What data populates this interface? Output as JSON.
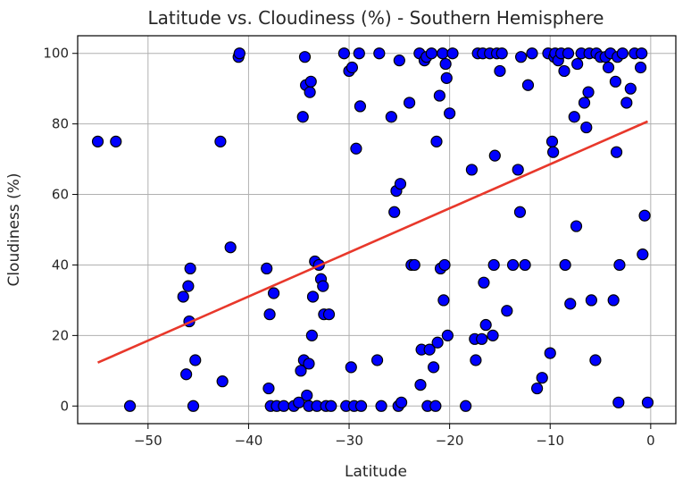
{
  "chart_data": {
    "type": "scatter",
    "title": "Latitude vs. Cloudiness (%) - Southern Hemisphere",
    "xlabel": "Latitude",
    "ylabel": "Cloudiness (%)",
    "xlim": [
      -57,
      2.5
    ],
    "ylim": [
      -5,
      105
    ],
    "xticks": [
      -50,
      -40,
      -30,
      -20,
      -10,
      0
    ],
    "yticks": [
      0,
      20,
      40,
      60,
      80,
      100
    ],
    "grid": true,
    "colors": {
      "marker_fill": "#0000ff",
      "marker_edge": "#000000",
      "regression_line": "#e8382b",
      "grid": "#b0b0b0"
    },
    "series": [
      {
        "values": [
          [
            -55,
            75
          ],
          [
            -53.2,
            75
          ],
          [
            -51.8,
            0
          ],
          [
            -46.5,
            31
          ],
          [
            -46.2,
            9
          ],
          [
            -46,
            34
          ],
          [
            -45.9,
            24
          ],
          [
            -45.8,
            39
          ],
          [
            -45.5,
            0
          ],
          [
            -45.3,
            13
          ],
          [
            -42.8,
            75
          ],
          [
            -42.6,
            7
          ],
          [
            -41.8,
            45
          ],
          [
            -41,
            99
          ],
          [
            -40.9,
            100
          ],
          [
            -38.2,
            39
          ],
          [
            -38,
            5
          ],
          [
            -37.9,
            26
          ],
          [
            -37.5,
            32
          ],
          [
            -37.8,
            0
          ],
          [
            -37.2,
            0
          ],
          [
            -36.5,
            0
          ],
          [
            -35.5,
            0
          ],
          [
            -35,
            1
          ],
          [
            -34.8,
            10
          ],
          [
            -34.6,
            82
          ],
          [
            -34.5,
            13
          ],
          [
            -34.4,
            99
          ],
          [
            -34.3,
            91
          ],
          [
            -34.2,
            3
          ],
          [
            -34,
            0
          ],
          [
            -34,
            12
          ],
          [
            -33.9,
            89
          ],
          [
            -33.8,
            92
          ],
          [
            -33.7,
            20
          ],
          [
            -33.6,
            31
          ],
          [
            -33.4,
            41
          ],
          [
            -33.2,
            0
          ],
          [
            -33,
            40
          ],
          [
            -32.8,
            36
          ],
          [
            -32.6,
            34
          ],
          [
            -32.5,
            26
          ],
          [
            -32.3,
            0
          ],
          [
            -32,
            26
          ],
          [
            -31.8,
            0
          ],
          [
            -30.5,
            100
          ],
          [
            -30.3,
            0
          ],
          [
            -30,
            95
          ],
          [
            -29.8,
            11
          ],
          [
            -29.7,
            96
          ],
          [
            -29.5,
            0
          ],
          [
            -29.3,
            73
          ],
          [
            -29,
            100
          ],
          [
            -28.9,
            85
          ],
          [
            -28.8,
            0
          ],
          [
            -27.2,
            13
          ],
          [
            -27,
            100
          ],
          [
            -26.8,
            0
          ],
          [
            -25.8,
            82
          ],
          [
            -25.5,
            55
          ],
          [
            -25.3,
            61
          ],
          [
            -25.1,
            0
          ],
          [
            -25,
            98
          ],
          [
            -24.9,
            63
          ],
          [
            -24.8,
            1
          ],
          [
            -24,
            86
          ],
          [
            -23.8,
            40
          ],
          [
            -23.5,
            40
          ],
          [
            -23,
            100
          ],
          [
            -22.9,
            6
          ],
          [
            -22.8,
            16
          ],
          [
            -22.5,
            98
          ],
          [
            -22.3,
            99
          ],
          [
            -22.2,
            0
          ],
          [
            -22,
            16
          ],
          [
            -21.8,
            100
          ],
          [
            -21.6,
            11
          ],
          [
            -21.4,
            0
          ],
          [
            -21.3,
            75
          ],
          [
            -21.2,
            18
          ],
          [
            -21,
            88
          ],
          [
            -20.9,
            39
          ],
          [
            -20.7,
            100
          ],
          [
            -20.6,
            30
          ],
          [
            -20.5,
            40
          ],
          [
            -20.4,
            97
          ],
          [
            -20.3,
            93
          ],
          [
            -20.2,
            20
          ],
          [
            -20,
            83
          ],
          [
            -19.7,
            100
          ],
          [
            -18.4,
            0
          ],
          [
            -17.8,
            67
          ],
          [
            -17.5,
            19
          ],
          [
            -17.4,
            13
          ],
          [
            -17.2,
            100
          ],
          [
            -16.8,
            19
          ],
          [
            -16.7,
            100
          ],
          [
            -16.6,
            35
          ],
          [
            -16.4,
            23
          ],
          [
            -16,
            100
          ],
          [
            -15.7,
            20
          ],
          [
            -15.6,
            40
          ],
          [
            -15.5,
            71
          ],
          [
            -15.3,
            100
          ],
          [
            -15,
            95
          ],
          [
            -14.8,
            100
          ],
          [
            -14.3,
            27
          ],
          [
            -13.7,
            40
          ],
          [
            -13.2,
            67
          ],
          [
            -13,
            55
          ],
          [
            -12.9,
            99
          ],
          [
            -12.5,
            40
          ],
          [
            -12.2,
            91
          ],
          [
            -11.8,
            100
          ],
          [
            -11.3,
            5
          ],
          [
            -10.8,
            8
          ],
          [
            -10.2,
            100
          ],
          [
            -10,
            15
          ],
          [
            -9.8,
            75
          ],
          [
            -9.7,
            72
          ],
          [
            -9.6,
            99
          ],
          [
            -9.5,
            100
          ],
          [
            -9.2,
            98
          ],
          [
            -8.9,
            100
          ],
          [
            -8.6,
            95
          ],
          [
            -8.5,
            40
          ],
          [
            -8.2,
            100
          ],
          [
            -8,
            29
          ],
          [
            -7.6,
            82
          ],
          [
            -7.4,
            51
          ],
          [
            -7.3,
            97
          ],
          [
            -6.9,
            100
          ],
          [
            -6.6,
            86
          ],
          [
            -6.4,
            79
          ],
          [
            -6.2,
            89
          ],
          [
            -6.1,
            100
          ],
          [
            -5.9,
            30
          ],
          [
            -5.5,
            13
          ],
          [
            -5.4,
            100
          ],
          [
            -5,
            99
          ],
          [
            -4.5,
            99
          ],
          [
            -4.2,
            96
          ],
          [
            -4,
            100
          ],
          [
            -3.7,
            30
          ],
          [
            -3.5,
            92
          ],
          [
            -3.4,
            72
          ],
          [
            -3.3,
            99
          ],
          [
            -3.2,
            1
          ],
          [
            -3.1,
            40
          ],
          [
            -2.8,
            100
          ],
          [
            -2.4,
            86
          ],
          [
            -2,
            90
          ],
          [
            -1.6,
            100
          ],
          [
            -1,
            96
          ],
          [
            -0.9,
            100
          ],
          [
            -0.8,
            43
          ],
          [
            -0.6,
            54
          ],
          [
            -0.3,
            1
          ]
        ]
      }
    ],
    "regression_line": {
      "x": [
        -55,
        -0.3
      ],
      "y": [
        12.3,
        80.7
      ]
    }
  }
}
